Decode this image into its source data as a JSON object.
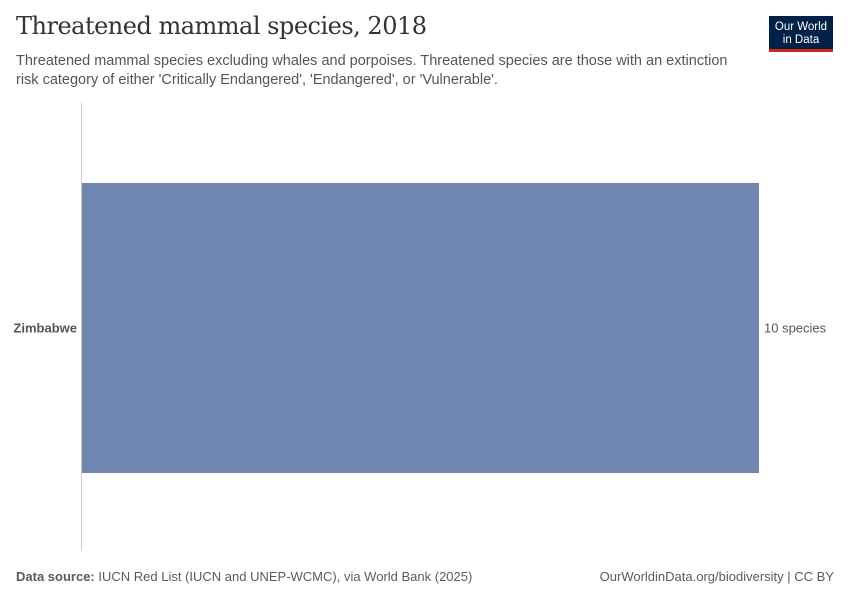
{
  "header": {
    "title": "Threatened mammal species, 2018",
    "subtitle": "Threatened mammal species excluding whales and porpoises. Threatened species are those with an extinction risk category of either 'Critically Endangered', 'Endangered', or 'Vulnerable'.",
    "logo_line1": "Our World",
    "logo_line2": "in Data"
  },
  "footer": {
    "source_label": "Data source:",
    "source_text": " IUCN Red List (IUCN and UNEP-WCMC), via World Bank (2025)",
    "link": "OurWorldinData.org/biodiversity | CC BY"
  },
  "chart_data": {
    "type": "bar",
    "orientation": "horizontal",
    "title": "Threatened mammal species, 2018",
    "categories": [
      "Zimbabwe"
    ],
    "values": [
      10
    ],
    "value_labels": [
      "10 species"
    ],
    "unit": "species",
    "xlim": [
      0,
      10
    ],
    "color": "#6f87b0"
  }
}
